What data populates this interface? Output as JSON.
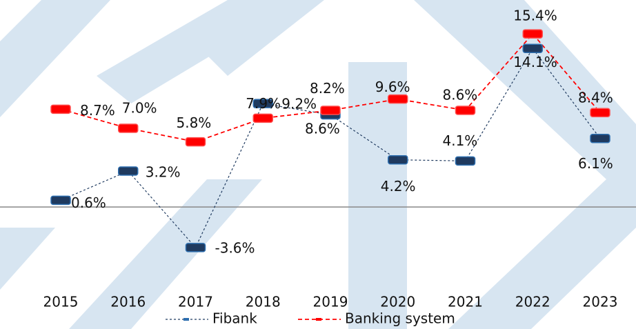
{
  "chart_data": {
    "type": "line",
    "categories": [
      "2015",
      "2016",
      "2017",
      "2018",
      "2019",
      "2020",
      "2021",
      "2022",
      "2023"
    ],
    "series": [
      {
        "name": "Fibank",
        "color": "#1f3a5f",
        "values": [
          0.6,
          3.2,
          -3.6,
          9.2,
          8.2,
          4.2,
          4.1,
          14.1,
          6.1
        ],
        "value_labels": [
          "0.6%",
          "3.2%",
          "-3.6%",
          "9.2%",
          "8.2%",
          "4.2%",
          "4.1%",
          "14.1%",
          "6.1%"
        ]
      },
      {
        "name": "Banking system",
        "color": "#ff0000",
        "values": [
          8.7,
          7.0,
          5.8,
          7.9,
          8.6,
          9.6,
          8.6,
          15.4,
          8.4
        ],
        "value_labels": [
          "8.7%",
          "7.0%",
          "5.8%",
          "7.9%",
          "8.6%",
          "9.6%",
          "8.6%",
          "15.4%",
          "8.4%"
        ]
      }
    ],
    "ylim": [
      -6,
      17
    ]
  }
}
